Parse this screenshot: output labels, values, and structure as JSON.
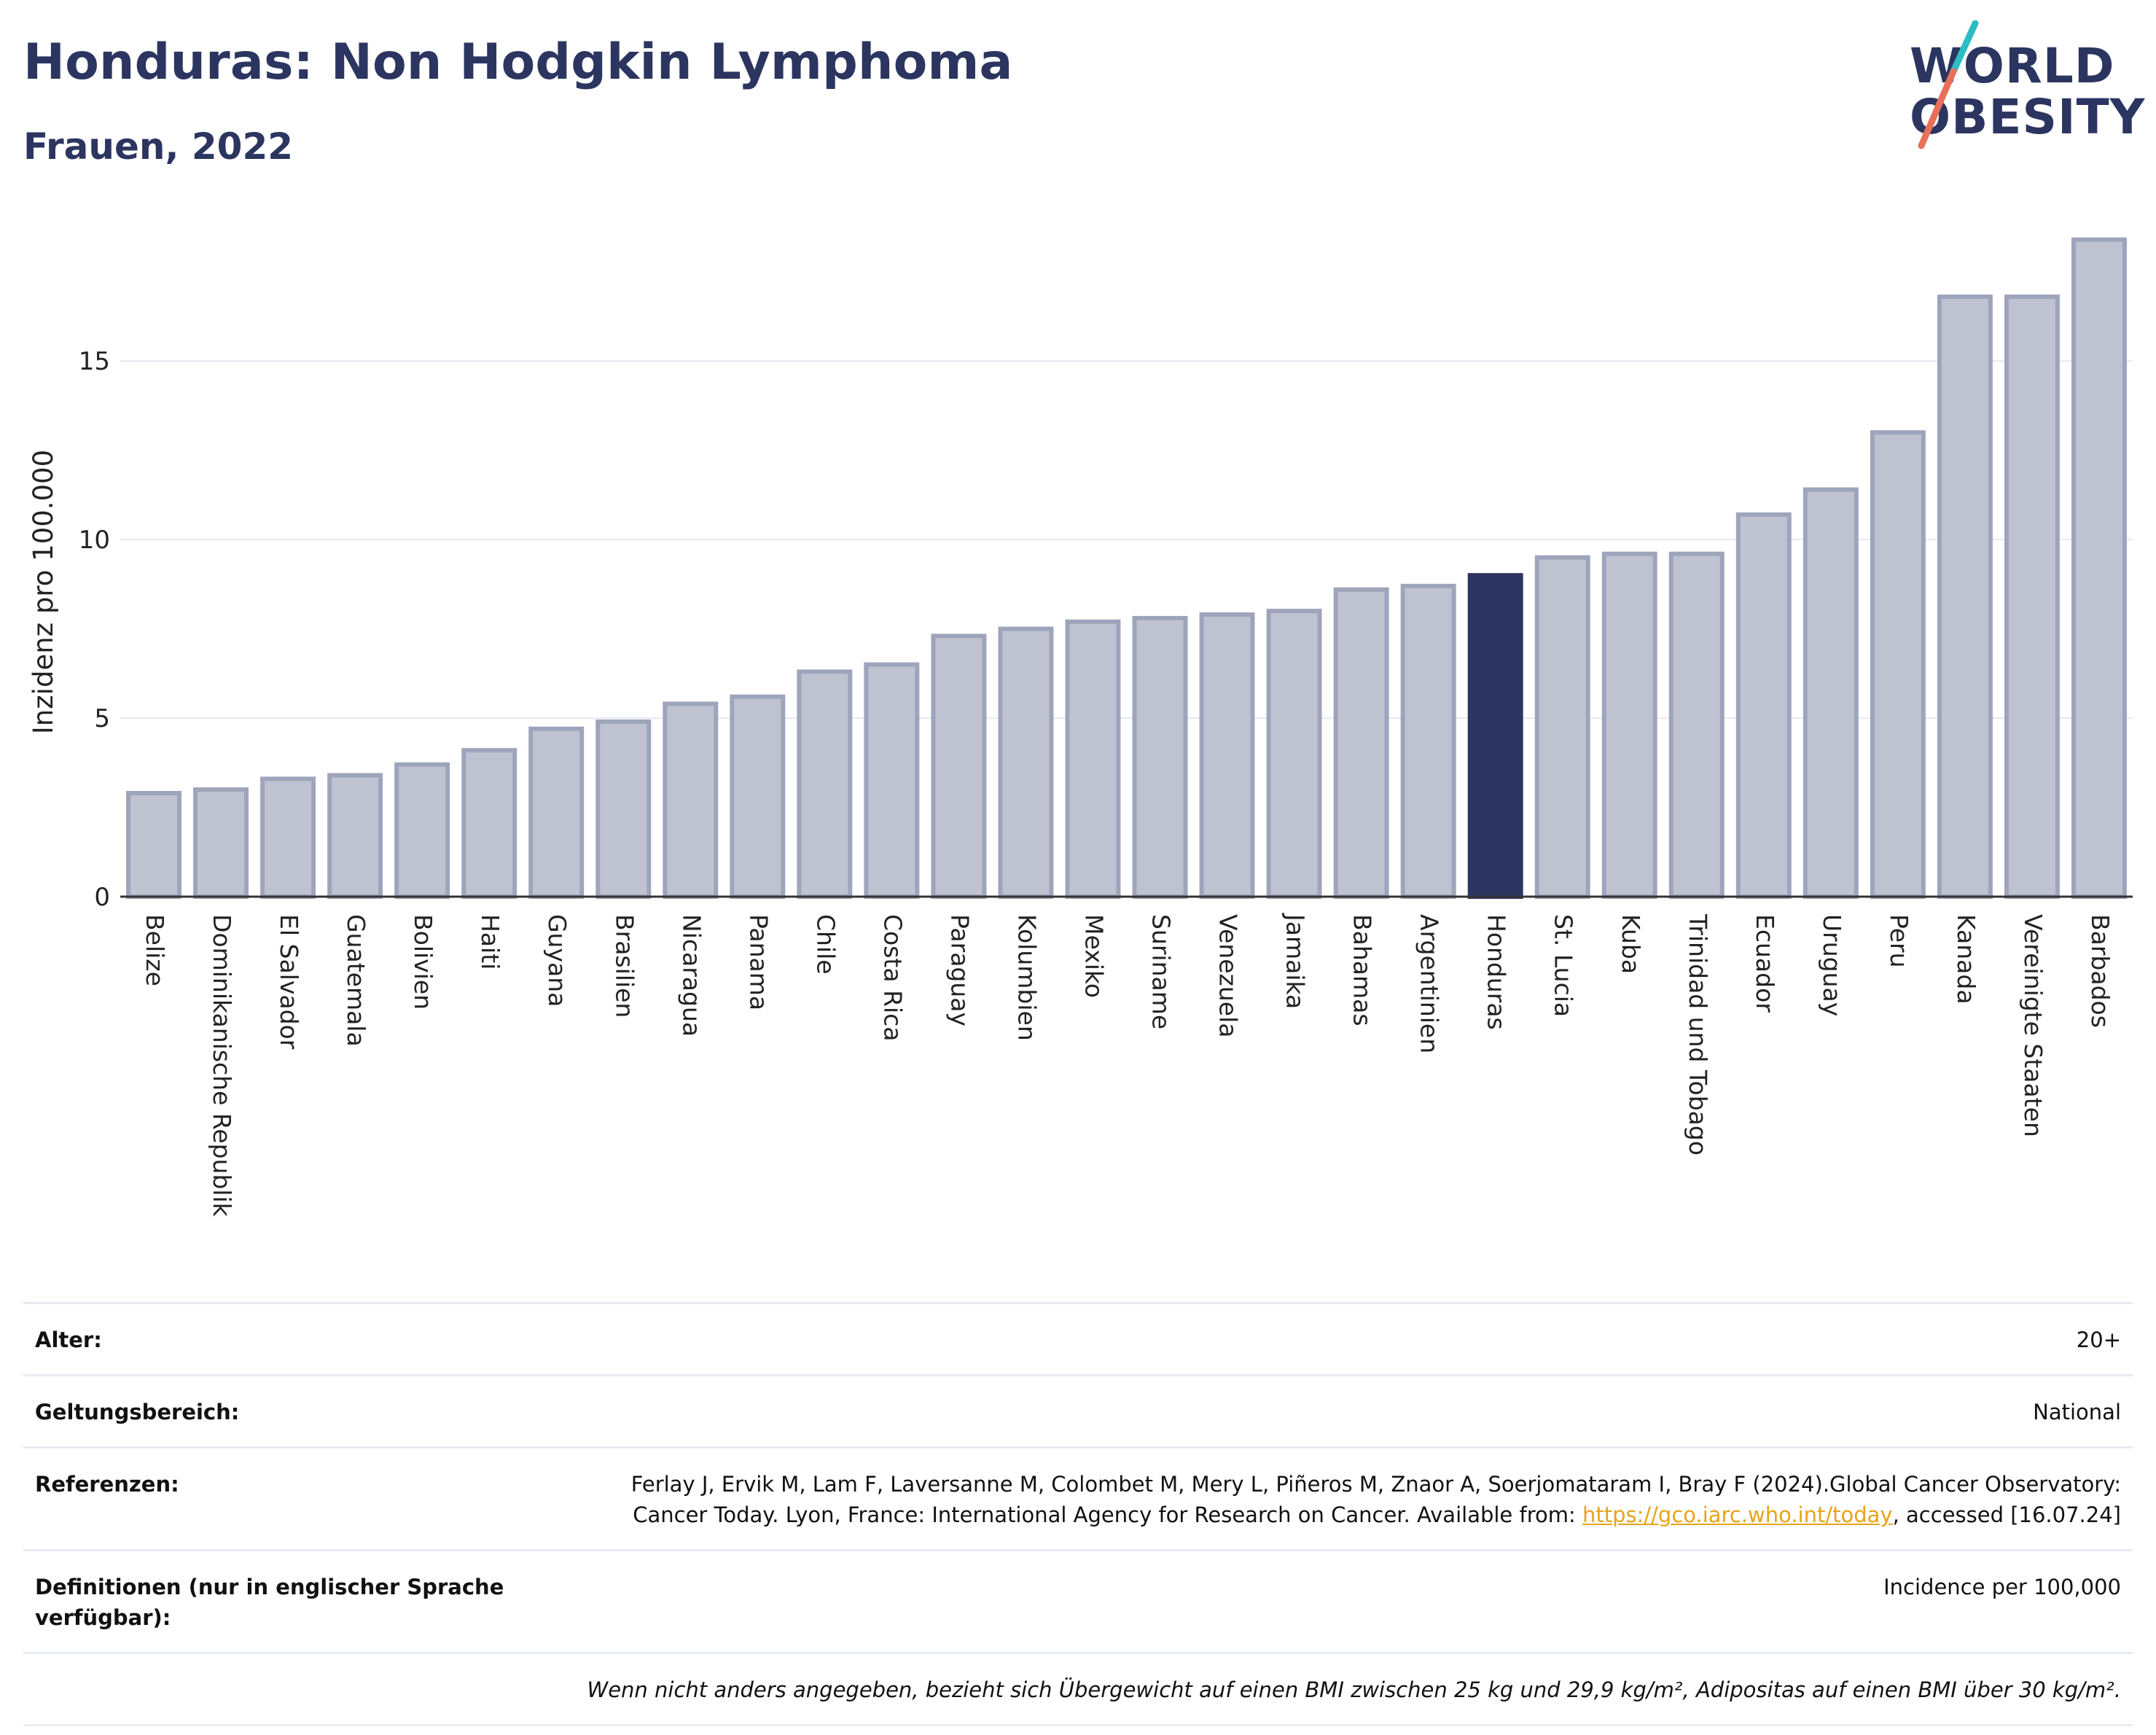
{
  "header": {
    "title": "Honduras: Non Hodgkin Lymphoma",
    "subtitle": "Frauen, 2022"
  },
  "logo": {
    "line1": "WORLD",
    "line2": "OBESITY",
    "colors": {
      "text": "#2b3560",
      "slash_top": "#2bbcc4",
      "slash_bottom": "#e8705a"
    }
  },
  "chart_data": {
    "type": "bar",
    "title": "Honduras: Non Hodgkin Lymphoma",
    "subtitle": "Frauen, 2022",
    "ylabel": "Inzidenz pro 100.000",
    "xlabel": "",
    "ylim": [
      0,
      18.7
    ],
    "yticks": [
      0,
      5,
      10,
      15
    ],
    "grid": true,
    "highlight": "Honduras",
    "colors": {
      "bar": "#bfc3d1",
      "bar_border": "#9ea4bb",
      "highlight": "#2b3560"
    },
    "categories": [
      "Belize",
      "Dominikanische Republik",
      "El Salvador",
      "Guatemala",
      "Bolivien",
      "Haiti",
      "Guyana",
      "Brasilien",
      "Nicaragua",
      "Panama",
      "Chile",
      "Costa Rica",
      "Paraguay",
      "Kolumbien",
      "Mexiko",
      "Suriname",
      "Venezuela",
      "Jamaika",
      "Bahamas",
      "Argentinien",
      "Honduras",
      "St. Lucia",
      "Kuba",
      "Trinidad und Tobago",
      "Ecuador",
      "Uruguay",
      "Peru",
      "Kanada",
      "Vereinigte Staaten",
      "Barbados"
    ],
    "values": [
      2.9,
      3.0,
      3.3,
      3.4,
      3.7,
      4.1,
      4.7,
      4.9,
      5.4,
      5.6,
      6.3,
      6.5,
      7.3,
      7.5,
      7.7,
      7.8,
      7.9,
      8.0,
      8.6,
      8.7,
      9.0,
      9.5,
      9.6,
      9.6,
      10.7,
      11.4,
      13.0,
      16.8,
      16.8,
      18.4
    ]
  },
  "info": {
    "age_label": "Alter:",
    "age_value": "20+",
    "scope_label": "Geltungsbereich:",
    "scope_value": "National",
    "ref_label": "Referenzen:",
    "ref_text_1": "Ferlay J, Ervik M, Lam F, Laversanne M, Colombet M, Mery L, Piñeros M, Znaor A, Soerjomataram I, Bray F (2024).Global Cancer Observatory: Cancer Today. Lyon, France: International Agency for Research on Cancer. Available from: ",
    "ref_link": "https://gco.iarc.who.int/today",
    "ref_text_2": ", accessed [16.07.24]",
    "def_label": "Definitionen (nur in englischer Sprache verfügbar):",
    "def_value": "Incidence per 100,000",
    "note": "Wenn nicht anders angegeben, bezieht sich Übergewicht auf einen BMI zwischen 25 kg und 29,9 kg/m², Adipositas auf einen BMI über 30 kg/m²."
  }
}
